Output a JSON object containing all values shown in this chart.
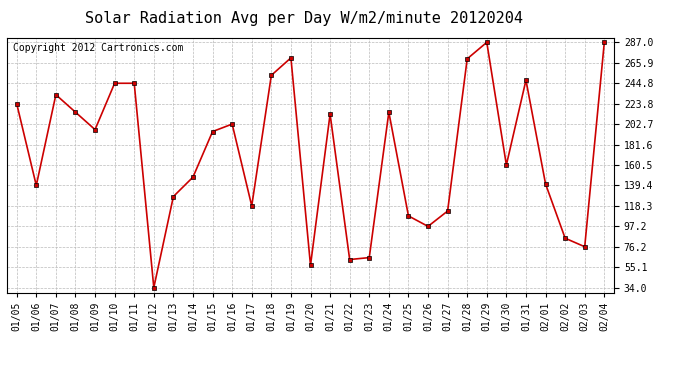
{
  "title": "Solar Radiation Avg per Day W/m2/minute 20120204",
  "copyright": "Copyright 2012 Cartronics.com",
  "dates": [
    "01/05",
    "01/06",
    "01/07",
    "01/08",
    "01/09",
    "01/10",
    "01/11",
    "01/12",
    "01/13",
    "01/14",
    "01/15",
    "01/16",
    "01/17",
    "01/18",
    "01/19",
    "01/20",
    "01/21",
    "01/22",
    "01/23",
    "01/24",
    "01/25",
    "01/26",
    "01/27",
    "01/28",
    "01/29",
    "01/30",
    "01/31",
    "02/01",
    "02/02",
    "02/03",
    "02/04"
  ],
  "values": [
    223.8,
    139.4,
    233.0,
    215.0,
    197.0,
    244.8,
    244.8,
    34.0,
    128.0,
    148.0,
    195.0,
    202.7,
    118.3,
    253.0,
    271.0,
    57.0,
    213.0,
    63.0,
    65.0,
    215.0,
    108.0,
    97.2,
    113.0,
    270.0,
    287.0,
    160.5,
    248.0,
    141.0,
    85.0,
    76.2,
    287.0
  ],
  "ymin": 34.0,
  "ymax": 287.0,
  "yticks": [
    34.0,
    55.1,
    76.2,
    97.2,
    118.3,
    139.4,
    160.5,
    181.6,
    202.7,
    223.8,
    244.8,
    265.9,
    287.0
  ],
  "line_color": "#cc0000",
  "marker": "s",
  "marker_size": 3,
  "bg_color": "#ffffff",
  "grid_color": "#bbbbbb",
  "title_fontsize": 11,
  "tick_fontsize": 7,
  "copyright_fontsize": 7
}
